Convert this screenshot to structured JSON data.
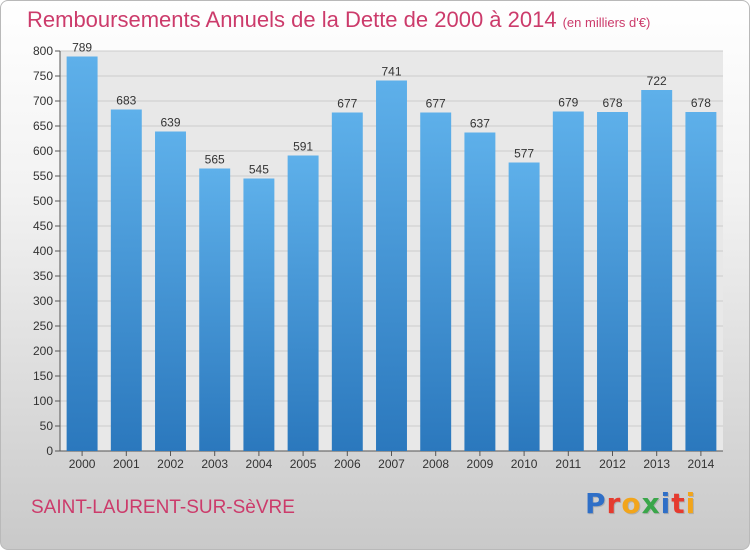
{
  "header": {
    "title": "Remboursements Annuels de la Dette de 2000 à 2014",
    "unit_note": "(en milliers d'€)"
  },
  "footer": {
    "commune": "SAINT-LAURENT-SUR-SèVRE",
    "logo": "Proxiti"
  },
  "colors": {
    "title": "#cc3b6b",
    "bar_top": "#5eb0ea",
    "bar_bottom": "#2b78bd",
    "grid": "#cccccc"
  },
  "chart_data": {
    "type": "bar",
    "title": "Remboursements Annuels de la Dette de 2000 à 2014",
    "categories": [
      "2000",
      "2001",
      "2002",
      "2003",
      "2004",
      "2005",
      "2006",
      "2007",
      "2008",
      "2009",
      "2010",
      "2011",
      "2012",
      "2013",
      "2014"
    ],
    "values": [
      789,
      683,
      639,
      565,
      545,
      591,
      677,
      741,
      677,
      637,
      577,
      679,
      678,
      722,
      678
    ],
    "data_labels": true,
    "ylim": [
      0,
      800
    ],
    "yticks": [
      0,
      50,
      100,
      150,
      200,
      250,
      300,
      350,
      400,
      450,
      500,
      550,
      600,
      650,
      700,
      750,
      800
    ],
    "grid": true
  }
}
